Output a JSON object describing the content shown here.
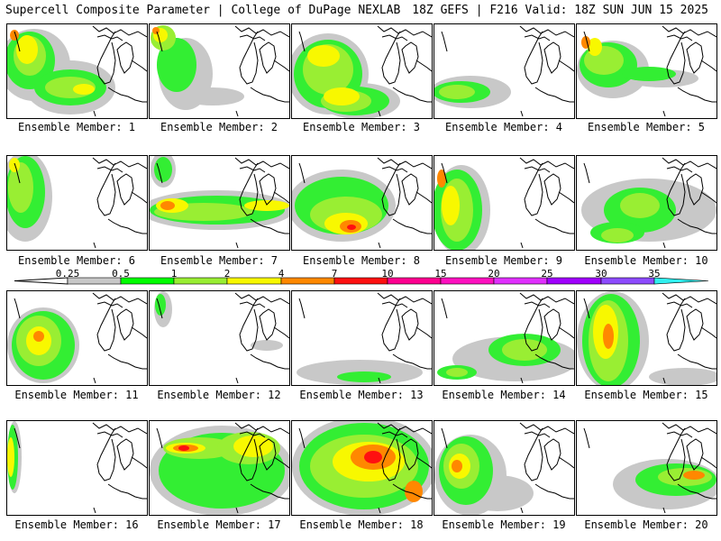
{
  "header": {
    "title": "Supercell Composite Parameter | College of DuPage NEXLAB",
    "run_info": "18Z GEFS | F216 Valid: 18Z SUN JUN 15 2025"
  },
  "colorbar": {
    "ticks": [
      "0.25",
      "0.5",
      "1",
      "2",
      "4",
      "7",
      "10",
      "15",
      "20",
      "25",
      "30",
      "35"
    ],
    "colors": [
      "#c8c8c8",
      "#00ff00",
      "#99ee33",
      "#f8f800",
      "#ff8800",
      "#ff1010",
      "#ff0090",
      "#ff10c0",
      "#e030ff",
      "#a000ff",
      "#8d4bff",
      "#30f0f0"
    ]
  },
  "palette": {
    "gray": "#c8c8c8",
    "green": "#33ee33",
    "lightgreen": "#99ee33",
    "yellow": "#f8f800",
    "orange": "#ff8800",
    "red": "#ff1010"
  },
  "members": [
    {
      "label": "Ensemble Member: 1"
    },
    {
      "label": "Ensemble Member: 2"
    },
    {
      "label": "Ensemble Member: 3"
    },
    {
      "label": "Ensemble Member: 4"
    },
    {
      "label": "Ensemble Member: 5"
    },
    {
      "label": "Ensemble Member: 6"
    },
    {
      "label": "Ensemble Member: 7"
    },
    {
      "label": "Ensemble Member: 8"
    },
    {
      "label": "Ensemble Member: 9"
    },
    {
      "label": "Ensemble Member: 10"
    },
    {
      "label": "Ensemble Member: 11"
    },
    {
      "label": "Ensemble Member: 12"
    },
    {
      "label": "Ensemble Member: 13"
    },
    {
      "label": "Ensemble Member: 14"
    },
    {
      "label": "Ensemble Member: 15"
    },
    {
      "label": "Ensemble Member: 16"
    },
    {
      "label": "Ensemble Member: 17"
    },
    {
      "label": "Ensemble Member: 18"
    },
    {
      "label": "Ensemble Member: 19"
    },
    {
      "label": "Ensemble Member: 20"
    }
  ]
}
